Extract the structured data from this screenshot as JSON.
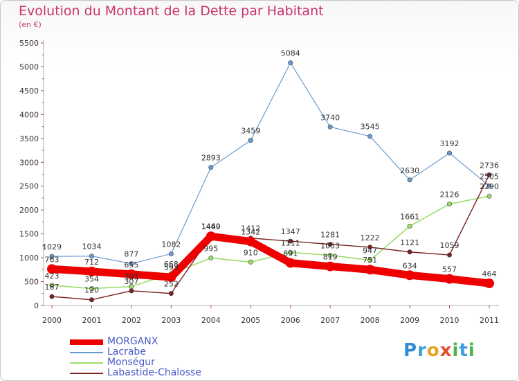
{
  "title": "Evolution du Montant de la Dette par Habitant",
  "subtitle": "(en €)",
  "logo_text": "Proxiti",
  "chart_data": {
    "type": "line",
    "title": "Evolution du Montant de la Dette par Habitant",
    "ylabel": "(en €)",
    "xlabel": "",
    "x": [
      "2000",
      "2001",
      "2002",
      "2003",
      "2004",
      "2005",
      "2006",
      "2007",
      "2008",
      "2009",
      "2010",
      "2011"
    ],
    "ylim": [
      0,
      5500
    ],
    "yticks": [
      0,
      500,
      1000,
      1500,
      2000,
      2500,
      3000,
      3500,
      4000,
      4500,
      5000,
      5500
    ],
    "grid": false,
    "legend_position": "bottom-left",
    "series": [
      {
        "name": "MORGANX",
        "color": "#ee0000",
        "values": [
          763,
          712,
          655,
          593,
          1449,
          1342,
          891,
          819,
          751,
          634,
          557,
          464
        ]
      },
      {
        "name": "Lacrabe",
        "color": "#6a9bd1",
        "values": [
          1029,
          1034,
          877,
          1082,
          2893,
          3459,
          5084,
          3740,
          3545,
          2630,
          3192,
          2505
        ]
      },
      {
        "name": "Monségur",
        "color": "#9bdc6b",
        "values": [
          423,
          354,
          397,
          668,
          995,
          910,
          1111,
          1053,
          947,
          1661,
          2126,
          2290
        ]
      },
      {
        "name": "Labastide-Chalosse",
        "color": "#7a2222",
        "values": [
          187,
          120,
          307,
          252,
          1460,
          1412,
          1347,
          1281,
          1222,
          1121,
          1059,
          2736
        ]
      }
    ],
    "data_labels": [
      {
        "series": "MORGANX",
        "labels": [
          "763",
          "712",
          "655",
          "593",
          "1449",
          "1342",
          "891",
          "819",
          "751",
          "634",
          "557",
          "464"
        ]
      },
      {
        "series": "Lacrabe",
        "labels": [
          "1029",
          "1034",
          "877",
          "1082",
          "2893",
          "3459",
          "5084",
          "3740",
          "3545",
          "2630",
          "3192",
          "2505"
        ]
      },
      {
        "series": "Monségur",
        "labels": [
          "423",
          "354",
          "397",
          "668",
          "995",
          "910",
          "1111",
          "1053",
          "947",
          "1661",
          "2126",
          "2290"
        ]
      },
      {
        "series": "Labastide-Chalosse",
        "labels": [
          "187",
          "120",
          "307",
          "252",
          "1460",
          "1412",
          "1347",
          "1281",
          "1222",
          "1121",
          "1059",
          "2736"
        ]
      }
    ]
  }
}
